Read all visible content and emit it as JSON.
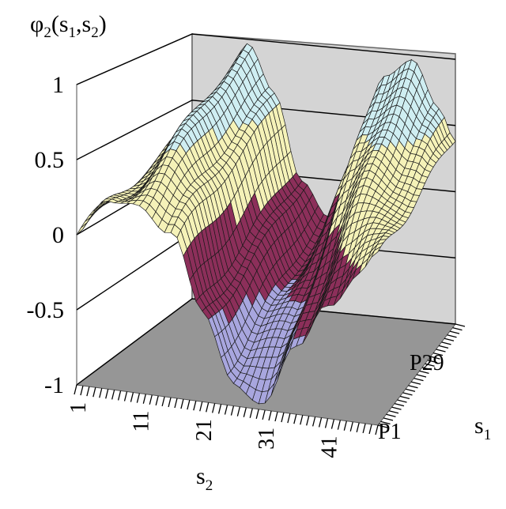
{
  "chart_data": {
    "type": "surface",
    "title": "φ2(s1,s2)",
    "title_main": "φ",
    "title_sub": "2",
    "title_args": [
      "(s",
      "1",
      ",s",
      "2",
      ")"
    ],
    "xlabel": "s",
    "xlabel_sub": "2",
    "ylabel": "s",
    "ylabel_sub": "1",
    "x_ticks": [
      "1",
      "11",
      "21",
      "31",
      "41"
    ],
    "y_ticks": [
      "P1",
      "P29"
    ],
    "z_ticks": [
      "1",
      "0.5",
      "0",
      "-0.5",
      "-1"
    ],
    "z_values": [
      1,
      0.5,
      0,
      -0.5,
      -1
    ],
    "zlim": [
      -1,
      1
    ],
    "x_range": [
      1,
      49
    ],
    "grid": true,
    "colorbands": [
      {
        "range": [
          0.5,
          1
        ],
        "color": "#cfeef2"
      },
      {
        "range": [
          0,
          0.5
        ],
        "color": "#f5f2b8"
      },
      {
        "range": [
          -0.5,
          0
        ],
        "color": "#8c2f5a"
      },
      {
        "range": [
          -1,
          -0.5
        ],
        "color": "#a8a6de"
      }
    ],
    "surface_profile": {
      "x": [
        1,
        6,
        11,
        16,
        21,
        26,
        31,
        36,
        41,
        46,
        49
      ],
      "z_back": [
        0.3,
        0.5,
        0.95,
        0.6,
        0.0,
        -0.3,
        0.2,
        0.85,
        0.95,
        0.6,
        0.4
      ],
      "z_front": [
        0.0,
        0.2,
        0.3,
        0.1,
        -0.45,
        -0.8,
        -0.95,
        -0.6,
        -0.2,
        0.0,
        0.1
      ]
    },
    "colors": {
      "back_wall": "#d4d4d4",
      "floor": "#969696",
      "grid": "#000000"
    }
  }
}
